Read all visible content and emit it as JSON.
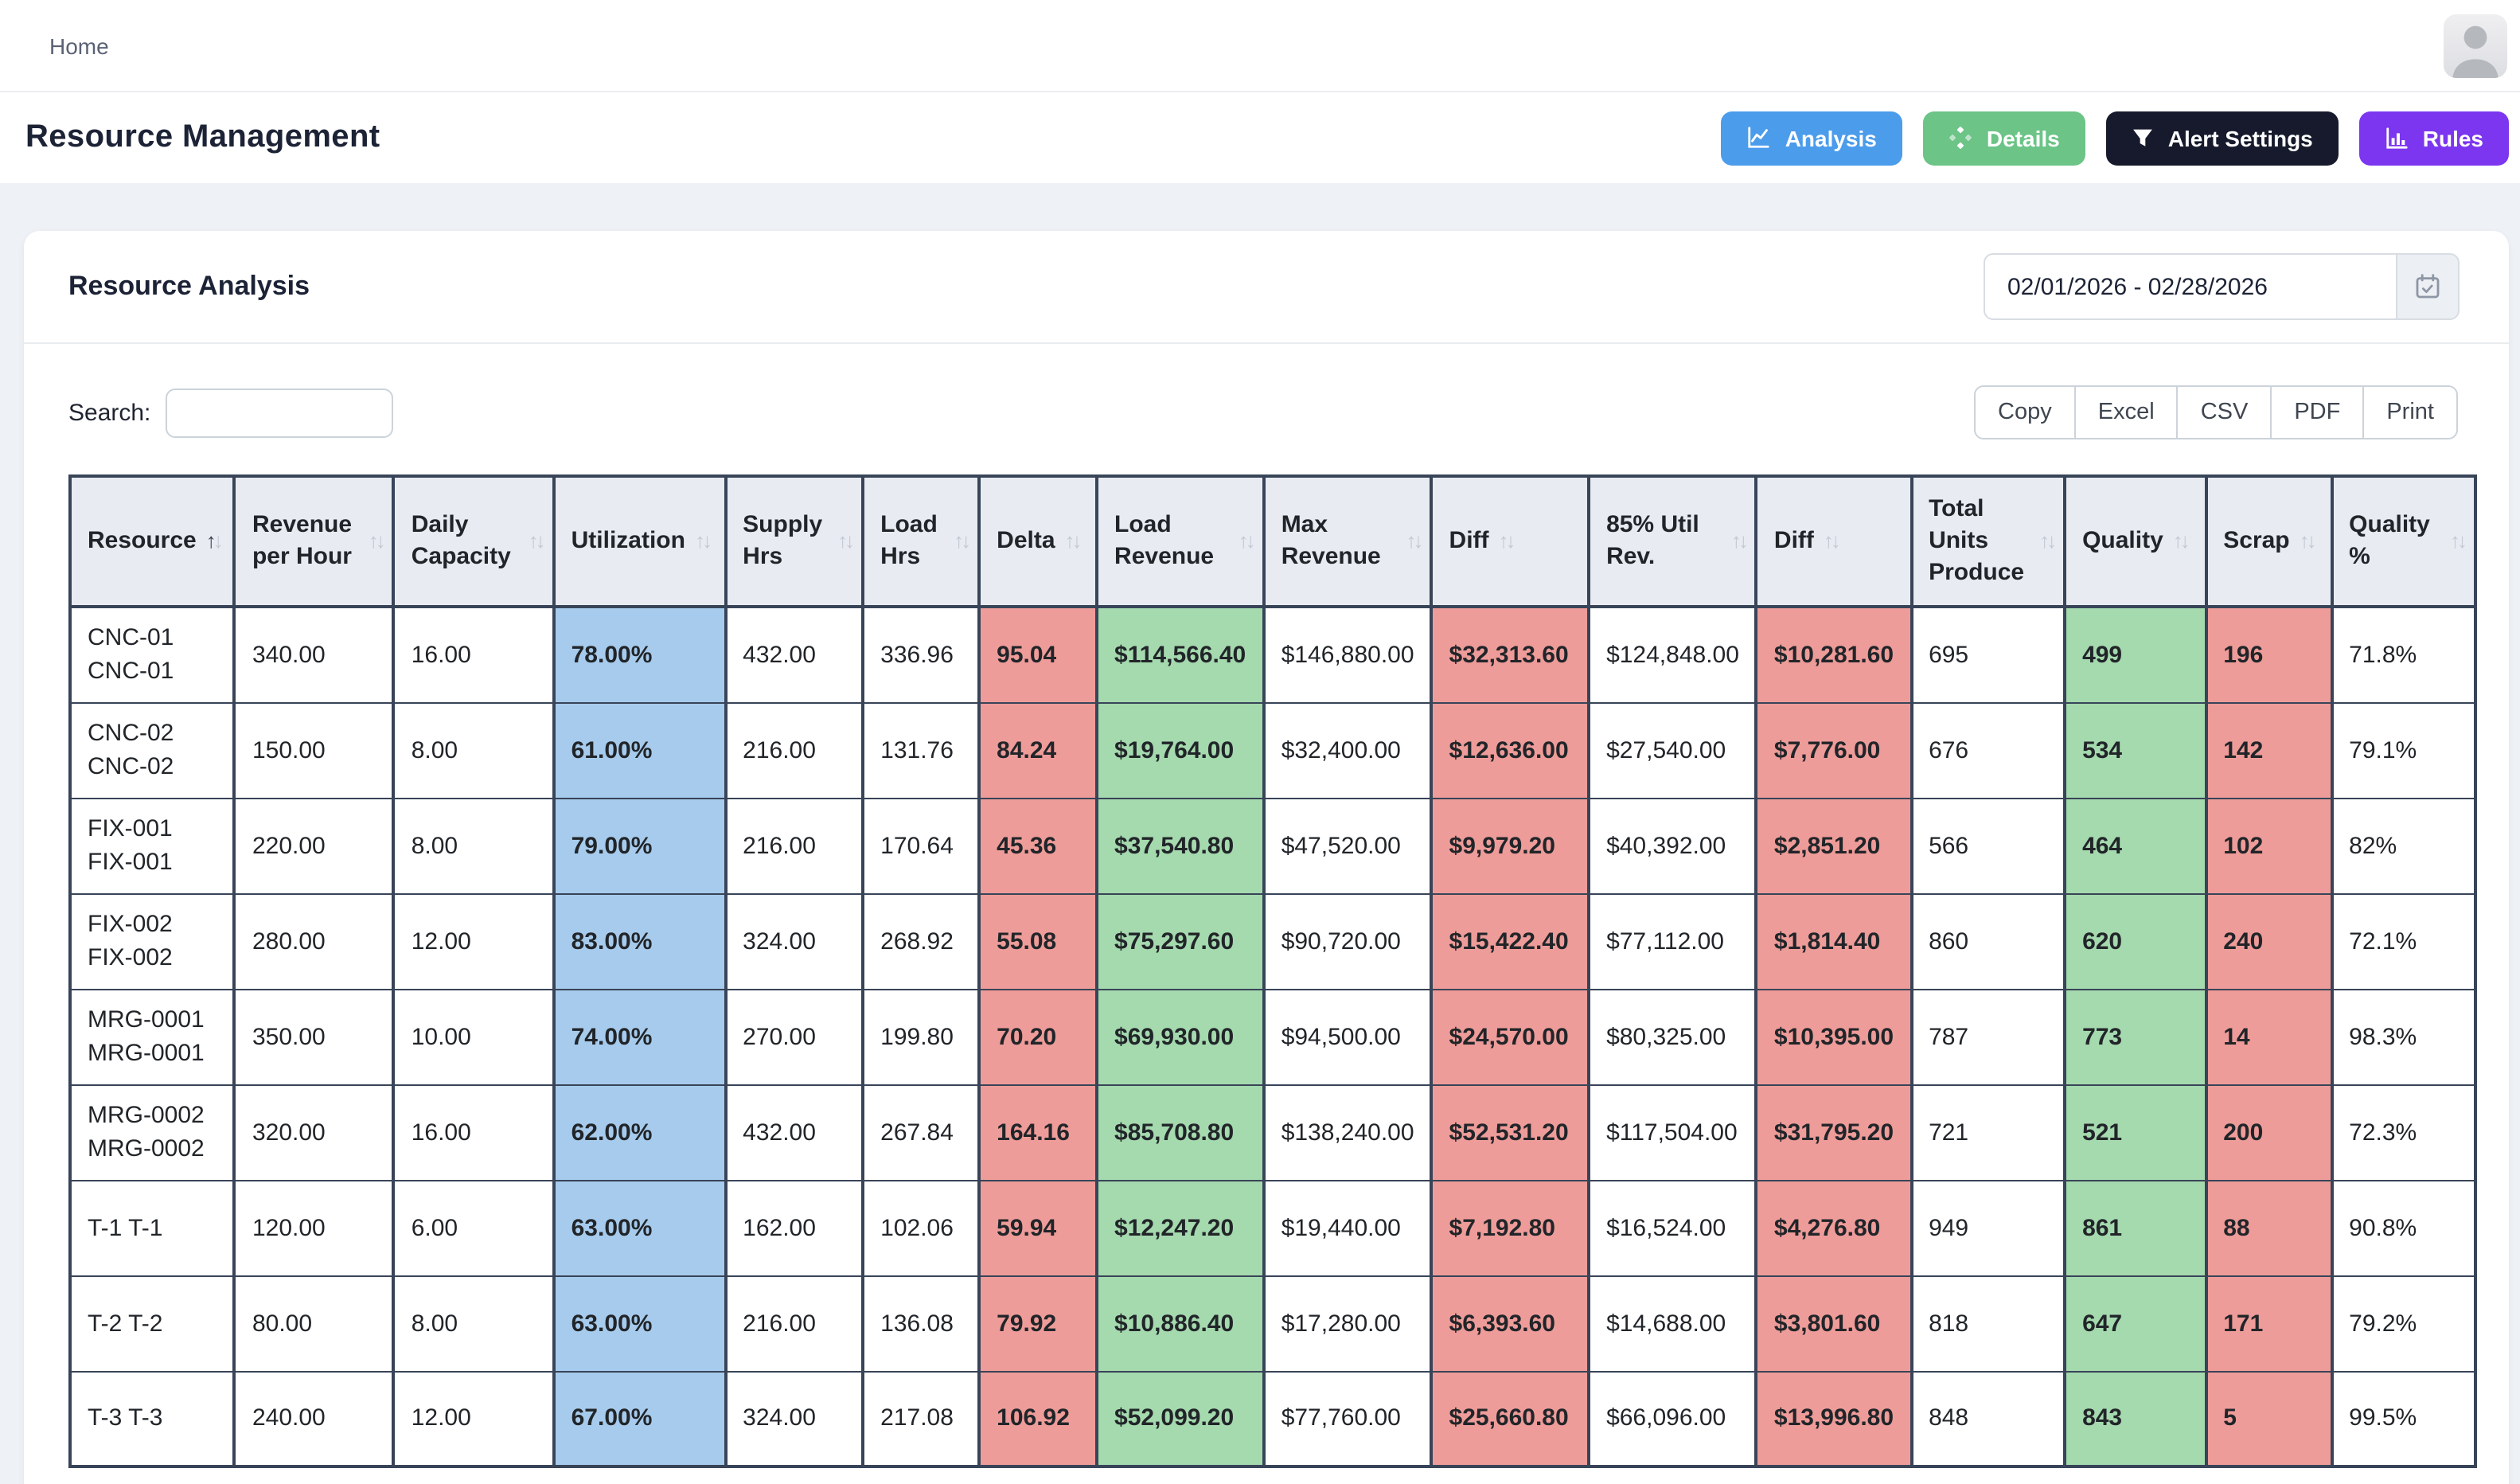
{
  "nav": {
    "home_label": "Home",
    "avatar_icon": "user-avatar-icon"
  },
  "header": {
    "title": "Resource Management",
    "buttons": [
      {
        "label": "Analysis",
        "icon": "chart-line-icon",
        "color": "#4b9ceb"
      },
      {
        "label": "Details",
        "icon": "diamond-dots-icon",
        "color": "#6cc487"
      },
      {
        "label": "Alert Settings",
        "icon": "funnel-icon",
        "color": "#161a2c"
      },
      {
        "label": "Rules",
        "icon": "bar-chart-icon",
        "color": "#7c36ef"
      }
    ]
  },
  "card": {
    "title": "Resource Analysis",
    "date_range": "02/01/2026 - 02/28/2026",
    "date_icon": "calendar-check-icon"
  },
  "toolbar": {
    "search_label": "Search:",
    "search_value": "",
    "export_buttons": [
      "Copy",
      "Excel",
      "CSV",
      "PDF",
      "Print"
    ]
  },
  "table": {
    "columns": [
      {
        "label": "Resource",
        "sort": "asc",
        "cellClass": "plain"
      },
      {
        "label": "Revenue per Hour",
        "sort": "none",
        "cellClass": "plain"
      },
      {
        "label": "Daily Capacity",
        "sort": "none",
        "cellClass": "plain"
      },
      {
        "label": "Utilization",
        "sort": "none",
        "cellClass": "blue"
      },
      {
        "label": "Supply Hrs",
        "sort": "none",
        "cellClass": "plain"
      },
      {
        "label": "Load Hrs",
        "sort": "none",
        "cellClass": "plain"
      },
      {
        "label": "Delta",
        "sort": "none",
        "cellClass": "red"
      },
      {
        "label": "Load Revenue",
        "sort": "none",
        "cellClass": "green"
      },
      {
        "label": "Max Revenue",
        "sort": "none",
        "cellClass": "plain"
      },
      {
        "label": "Diff",
        "sort": "none",
        "cellClass": "red"
      },
      {
        "label": "85% Util Rev.",
        "sort": "none",
        "cellClass": "plain"
      },
      {
        "label": "Diff",
        "sort": "none",
        "cellClass": "red"
      },
      {
        "label": "Total Units Produce",
        "sort": "none",
        "cellClass": "plain"
      },
      {
        "label": "Quality",
        "sort": "none",
        "cellClass": "green"
      },
      {
        "label": "Scrap",
        "sort": "none",
        "cellClass": "red"
      },
      {
        "label": "Quality %",
        "sort": "none",
        "cellClass": "plain"
      }
    ],
    "rows": [
      [
        "CNC-01 CNC-01",
        "340.00",
        "16.00",
        "78.00%",
        "432.00",
        "336.96",
        "95.04",
        "$114,566.40",
        "$146,880.00",
        "$32,313.60",
        "$124,848.00",
        "$10,281.60",
        "695",
        "499",
        "196",
        "71.8%"
      ],
      [
        "CNC-02 CNC-02",
        "150.00",
        "8.00",
        "61.00%",
        "216.00",
        "131.76",
        "84.24",
        "$19,764.00",
        "$32,400.00",
        "$12,636.00",
        "$27,540.00",
        "$7,776.00",
        "676",
        "534",
        "142",
        "79.1%"
      ],
      [
        "FIX-001 FIX-001",
        "220.00",
        "8.00",
        "79.00%",
        "216.00",
        "170.64",
        "45.36",
        "$37,540.80",
        "$47,520.00",
        "$9,979.20",
        "$40,392.00",
        "$2,851.20",
        "566",
        "464",
        "102",
        "82%"
      ],
      [
        "FIX-002 FIX-002",
        "280.00",
        "12.00",
        "83.00%",
        "324.00",
        "268.92",
        "55.08",
        "$75,297.60",
        "$90,720.00",
        "$15,422.40",
        "$77,112.00",
        "$1,814.40",
        "860",
        "620",
        "240",
        "72.1%"
      ],
      [
        "MRG-0001 MRG-0001",
        "350.00",
        "10.00",
        "74.00%",
        "270.00",
        "199.80",
        "70.20",
        "$69,930.00",
        "$94,500.00",
        "$24,570.00",
        "$80,325.00",
        "$10,395.00",
        "787",
        "773",
        "14",
        "98.3%"
      ],
      [
        "MRG-0002 MRG-0002",
        "320.00",
        "16.00",
        "62.00%",
        "432.00",
        "267.84",
        "164.16",
        "$85,708.80",
        "$138,240.00",
        "$52,531.20",
        "$117,504.00",
        "$31,795.20",
        "721",
        "521",
        "200",
        "72.3%"
      ],
      [
        "T-1 T-1",
        "120.00",
        "6.00",
        "63.00%",
        "162.00",
        "102.06",
        "59.94",
        "$12,247.20",
        "$19,440.00",
        "$7,192.80",
        "$16,524.00",
        "$4,276.80",
        "949",
        "861",
        "88",
        "90.8%"
      ],
      [
        "T-2 T-2",
        "80.00",
        "8.00",
        "63.00%",
        "216.00",
        "136.08",
        "79.92",
        "$10,886.40",
        "$17,280.00",
        "$6,393.60",
        "$14,688.00",
        "$3,801.60",
        "818",
        "647",
        "171",
        "79.2%"
      ],
      [
        "T-3 T-3",
        "240.00",
        "12.00",
        "67.00%",
        "324.00",
        "217.08",
        "106.92",
        "$52,099.20",
        "$77,760.00",
        "$25,660.80",
        "$66,096.00",
        "$13,996.80",
        "848",
        "843",
        "5",
        "99.5%"
      ]
    ]
  },
  "colors": {
    "cell_blue": "#a7cbec",
    "cell_red": "#ee9c99",
    "cell_green": "#a5d9ae",
    "table_border": "#384458",
    "header_bg": "#e8ebf1",
    "page_bg": "#eef1f6"
  }
}
